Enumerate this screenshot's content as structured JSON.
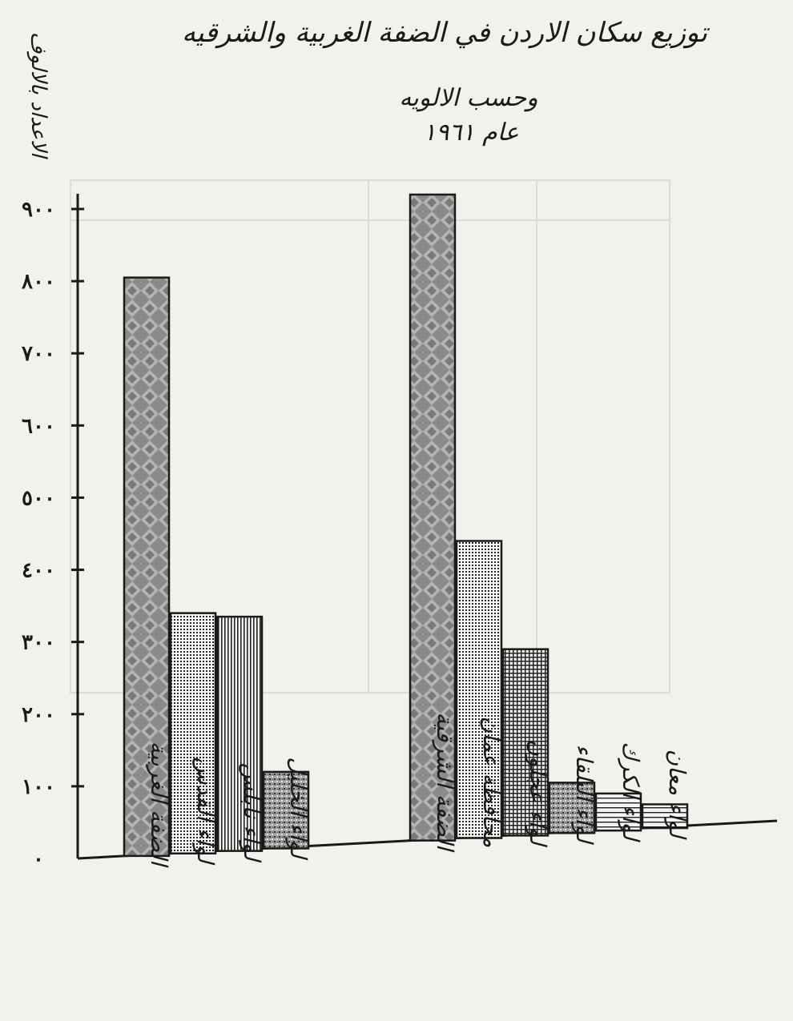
{
  "chart_data": {
    "type": "bar",
    "title": "توزيع سكان الاردن في الضفة الغربية والشرقيه",
    "subtitle": [
      "وحسب الالويه",
      "عام ١٩٦١"
    ],
    "ylabel": "الاعداد بالالوف",
    "ylim": [
      0,
      950
    ],
    "yticks": [
      0,
      100,
      200,
      300,
      400,
      500,
      600,
      700,
      800,
      900
    ],
    "ytick_labels": [
      "٠",
      "١٠٠",
      "٢٠٠",
      "٣٠٠",
      "٤٠٠",
      "٥٠٠",
      "٦٠٠",
      "٧٠٠",
      "٨٠٠",
      "٩٠٠"
    ],
    "grid": false,
    "legend": "none",
    "groups": [
      {
        "bars": [
          {
            "label": "الضفة الغربية",
            "value": 805,
            "pattern": "diamond"
          },
          {
            "label": "لواء القدس",
            "value": 340,
            "pattern": "dots"
          },
          {
            "label": "لواء نابلس",
            "value": 335,
            "pattern": "vlines"
          },
          {
            "label": "لواء الخليل",
            "value": 120,
            "pattern": "stipple"
          }
        ]
      },
      {
        "bars": [
          {
            "label": "الضفة الشرقية",
            "value": 920,
            "pattern": "diamond"
          },
          {
            "label": "محافظة عمان",
            "value": 440,
            "pattern": "dots"
          },
          {
            "label": "لواء عجلون",
            "value": 290,
            "pattern": "hatch"
          },
          {
            "label": "لواء البلقاء",
            "value": 105,
            "pattern": "stipple"
          },
          {
            "label": "لواء الكرك",
            "value": 90,
            "pattern": "hlines"
          },
          {
            "label": "لواء معان",
            "value": 75,
            "pattern": "hlines"
          }
        ]
      }
    ]
  },
  "colors": {
    "paper": "#f3f1ec",
    "ink": "#1a1a1a",
    "bar_dark": "#6e6e6e",
    "bar_light": "#b9b9b9"
  }
}
